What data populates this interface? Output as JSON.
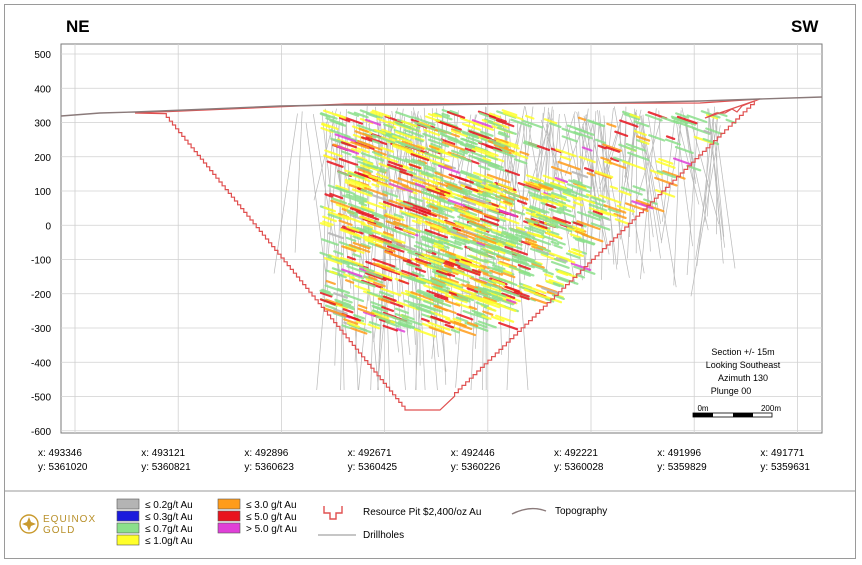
{
  "section": {
    "direction_left": "NE",
    "direction_right": "SW",
    "y_ticks": [
      "500",
      "400",
      "300",
      "200",
      "100",
      "0",
      "-100",
      "-200",
      "-300",
      "-400",
      "-500",
      "-600"
    ],
    "x_coords": [
      {
        "x": "x: 493346",
        "y": "y: 5361020"
      },
      {
        "x": "x: 493121",
        "y": "y: 5360821"
      },
      {
        "x": "x: 492896",
        "y": "y: 5360623"
      },
      {
        "x": "x: 492671",
        "y": "y: 5360425"
      },
      {
        "x": "x: 492446",
        "y": "y: 5360226"
      },
      {
        "x": "x: 492221",
        "y": "y: 5360028"
      },
      {
        "x": "x: 491996",
        "y": "y: 5359829"
      },
      {
        "x": "x: 491771",
        "y": "y: 5359631"
      }
    ],
    "info": {
      "line1": "Section +/- 15m",
      "line2": "Looking Southeast",
      "line3": "Azimuth 130",
      "line4": "Plunge 00"
    },
    "scale_left": "0m",
    "scale_right": "200m"
  },
  "legend": {
    "logo_top": "EQUINOX",
    "logo_bottom": "GOLD",
    "grades": [
      {
        "label": "≤ 0.2g/t Au",
        "color": "#b4b4b4"
      },
      {
        "label": "≤ 0.3g/t Au",
        "color": "#1a1adc"
      },
      {
        "label": "≤ 0.7g/t Au",
        "color": "#8be08b"
      },
      {
        "label": "≤ 1.0g/t Au",
        "color": "#ffff2a"
      },
      {
        "label": "≤ 3.0 g/t Au",
        "color": "#ff9c1a"
      },
      {
        "label": "≤ 5.0 g/t Au",
        "color": "#e8141e"
      },
      {
        "label": "> 5.0 g/t Au",
        "color": "#e040d8"
      }
    ],
    "pit_label": "Resource Pit $2,400/oz Au",
    "topo_label": "Topography",
    "drill_label": "Drillholes",
    "pit_color": "#e05050",
    "topo_color": "#8a7a7a"
  }
}
